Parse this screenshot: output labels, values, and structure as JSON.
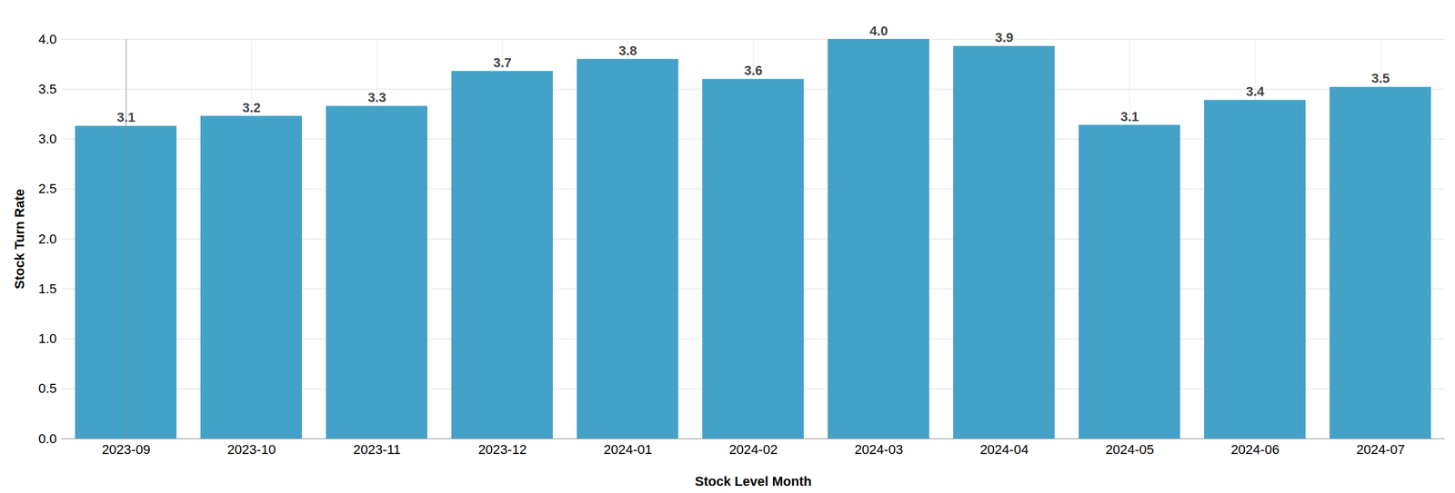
{
  "chart_data": {
    "type": "bar",
    "x_label": "Stock Level Month",
    "y_label": "Stock Turn Rate",
    "categories": [
      "2023-09",
      "2023-10",
      "2023-11",
      "2023-12",
      "2024-01",
      "2024-02",
      "2024-03",
      "2024-04",
      "2024-05",
      "2024-06",
      "2024-07"
    ],
    "values": [
      3.13,
      3.23,
      3.33,
      3.68,
      3.8,
      3.6,
      4.0,
      3.93,
      3.14,
      3.39,
      3.52
    ],
    "value_labels": [
      "3.1",
      "3.2",
      "3.3",
      "3.7",
      "3.8",
      "3.6",
      "4.0",
      "3.9",
      "3.1",
      "3.4",
      "3.5"
    ],
    "data_labels": true,
    "color": "#3a9dc6",
    "ylim": [
      0,
      4.0
    ],
    "yticks": [
      {
        "value": 0,
        "label": "0.0"
      },
      0.5,
      {
        "value": 1,
        "label": "1.0"
      },
      1.5,
      {
        "value": 2,
        "label": "2.0"
      },
      2.5,
      {
        "value": 3,
        "label": "3.0"
      },
      3.5,
      {
        "value": 4,
        "label": "4.0"
      }
    ],
    "grid": true
  }
}
